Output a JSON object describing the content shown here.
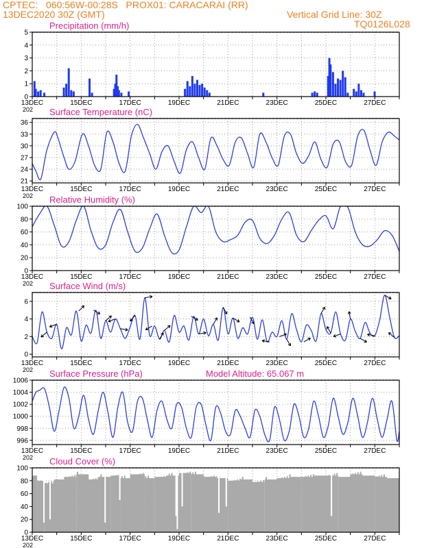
{
  "header": {
    "line1_left": "CPTEC:   060:56W-00:28S   PROX01: CARACARAI (RR)",
    "line2_left": "13DEC2020 30Z (GMT)",
    "line2_right": "Vertical Grid Line: 30Z",
    "line3_right": "TQ0126L028"
  },
  "x_tick_labels": [
    "13DEC",
    "15DEC",
    "17DEC",
    "19DEC",
    "21DEC",
    "23DEC",
    "25DEC",
    "27DEC"
  ],
  "year_fragment": "202",
  "colors": {
    "header": "#f08020",
    "title": "#e0208a",
    "line": "#2a3fe0",
    "precip": "#1f3af0",
    "cloud": "#aaaaaa"
  },
  "chart_data": [
    {
      "type": "bar",
      "title": "Precipitation (mm/h)",
      "ylim": [
        0,
        5
      ],
      "yticks": [
        "0",
        "1",
        "2",
        "3",
        "4",
        "5"
      ],
      "x_range_days": [
        0,
        15
      ],
      "bars": [
        [
          0.05,
          1.2
        ],
        [
          0.1,
          0.6
        ],
        [
          0.2,
          0.4
        ],
        [
          0.3,
          0.5
        ],
        [
          0.45,
          0.3
        ],
        [
          1.25,
          0.7
        ],
        [
          1.35,
          1.0
        ],
        [
          1.45,
          2.2
        ],
        [
          1.55,
          0.5
        ],
        [
          1.65,
          0.4
        ],
        [
          2.3,
          1.4
        ],
        [
          2.4,
          0.3
        ],
        [
          3.3,
          0.6
        ],
        [
          3.35,
          1.0
        ],
        [
          3.4,
          1.7
        ],
        [
          3.45,
          0.8
        ],
        [
          3.5,
          0.5
        ],
        [
          3.6,
          0.3
        ],
        [
          3.9,
          0.4
        ],
        [
          6.2,
          0.6
        ],
        [
          6.3,
          1.2
        ],
        [
          6.4,
          0.8
        ],
        [
          6.5,
          1.6
        ],
        [
          6.6,
          1.0
        ],
        [
          6.7,
          1.3
        ],
        [
          6.8,
          0.9
        ],
        [
          6.9,
          1.0
        ],
        [
          7.0,
          0.7
        ],
        [
          7.1,
          0.5
        ],
        [
          7.2,
          0.3
        ],
        [
          9.4,
          0.3
        ],
        [
          11.4,
          0.3
        ],
        [
          11.5,
          0.4
        ],
        [
          11.6,
          0.3
        ],
        [
          12.05,
          1.6
        ],
        [
          12.1,
          3.0
        ],
        [
          12.15,
          2.5
        ],
        [
          12.25,
          1.9
        ],
        [
          12.35,
          1.0
        ],
        [
          12.45,
          1.4
        ],
        [
          12.55,
          1.3
        ],
        [
          12.65,
          2.0
        ],
        [
          12.75,
          1.5
        ],
        [
          12.85,
          0.3
        ],
        [
          13.1,
          0.6
        ],
        [
          13.2,
          0.4
        ],
        [
          13.3,
          1.0
        ],
        [
          13.4,
          0.5
        ],
        [
          13.5,
          0.3
        ],
        [
          13.95,
          0.4
        ]
      ]
    },
    {
      "type": "line",
      "title": "Surface Temperature (nC)",
      "ylim": [
        20.5,
        37
      ],
      "yticks": [
        "21",
        "24",
        "27",
        "30",
        "33",
        "36"
      ],
      "x_range_days": [
        0,
        15
      ],
      "x": [
        0,
        0.15,
        0.35,
        0.6,
        0.9,
        1.05,
        1.3,
        1.5,
        1.75,
        2.05,
        2.3,
        2.55,
        2.8,
        3.05,
        3.3,
        3.55,
        3.8,
        4.05,
        4.3,
        4.55,
        4.8,
        5.05,
        5.3,
        5.55,
        5.8,
        6.05,
        6.3,
        6.55,
        6.8,
        7.05,
        7.3,
        7.55,
        7.8,
        8.05,
        8.3,
        8.55,
        8.8,
        9.05,
        9.3,
        9.55,
        9.8,
        10.05,
        10.3,
        10.55,
        10.8,
        11.05,
        11.3,
        11.55,
        11.8,
        12.05,
        12.3,
        12.55,
        12.8,
        13.05,
        13.3,
        13.55,
        13.8,
        14.05,
        14.3,
        14.55,
        14.8,
        15
      ],
      "values": [
        25.5,
        23.5,
        21.5,
        29,
        33.5,
        32,
        27,
        24,
        26,
        33,
        30,
        25,
        24,
        33.5,
        31,
        25.5,
        23.5,
        32.5,
        35.5,
        32,
        28,
        24,
        28.5,
        30,
        26,
        23,
        29,
        31,
        27,
        24,
        32,
        30,
        26.5,
        25,
        31,
        32,
        28,
        24.5,
        33,
        31,
        27,
        25,
        32.5,
        33,
        28,
        25.5,
        27.5,
        31,
        26.5,
        24.5,
        30.5,
        31,
        26,
        25,
        32.5,
        34,
        29,
        25,
        31,
        33.5,
        32.5,
        31.5
      ]
    },
    {
      "type": "line",
      "title": "Relative Humidity (%)",
      "ylim": [
        0,
        100
      ],
      "yticks": [
        "0",
        "20",
        "40",
        "60",
        "80",
        "100"
      ],
      "x_range_days": [
        0,
        15
      ],
      "x": [
        0,
        0.3,
        0.6,
        0.9,
        1.2,
        1.5,
        1.8,
        2.1,
        2.4,
        2.7,
        3,
        3.3,
        3.6,
        3.9,
        4.2,
        4.5,
        4.8,
        5.1,
        5.4,
        5.7,
        6,
        6.3,
        6.6,
        6.9,
        7.2,
        7.5,
        7.8,
        8.1,
        8.4,
        8.7,
        9,
        9.3,
        9.6,
        9.9,
        10.2,
        10.5,
        10.8,
        11.1,
        11.4,
        11.7,
        12,
        12.3,
        12.6,
        12.9,
        13.2,
        13.5,
        13.8,
        14.1,
        14.4,
        14.7,
        15
      ],
      "values": [
        68,
        88,
        100,
        70,
        38,
        45,
        78,
        100,
        62,
        35,
        40,
        75,
        95,
        60,
        30,
        35,
        65,
        88,
        55,
        28,
        32,
        68,
        100,
        90,
        100,
        60,
        45,
        48,
        55,
        75,
        78,
        50,
        42,
        55,
        80,
        90,
        55,
        45,
        62,
        78,
        85,
        65,
        100,
        98,
        60,
        40,
        38,
        48,
        62,
        55,
        30
      ]
    },
    {
      "type": "line",
      "title": "Surface Wind (m/s)",
      "ylim": [
        -0.3,
        7
      ],
      "yticks": [
        "0",
        "2",
        "4",
        "6"
      ],
      "x_range_days": [
        0,
        15
      ],
      "x": [
        0,
        0.2,
        0.4,
        0.6,
        0.8,
        1,
        1.2,
        1.4,
        1.6,
        1.8,
        2,
        2.2,
        2.4,
        2.6,
        2.8,
        3,
        3.2,
        3.4,
        3.6,
        3.8,
        4,
        4.2,
        4.4,
        4.6,
        4.8,
        5,
        5.2,
        5.4,
        5.6,
        5.8,
        6,
        6.2,
        6.4,
        6.6,
        6.8,
        7,
        7.2,
        7.4,
        7.6,
        7.8,
        8,
        8.2,
        8.4,
        8.6,
        8.8,
        9,
        9.2,
        9.4,
        9.6,
        9.8,
        10,
        10.2,
        10.4,
        10.6,
        10.8,
        11,
        11.2,
        11.4,
        11.6,
        11.8,
        12,
        12.2,
        12.4,
        12.6,
        12.8,
        13,
        13.2,
        13.4,
        13.6,
        13.8,
        14,
        14.2,
        14.4,
        14.6,
        14.8,
        15
      ],
      "values": [
        2,
        1.3,
        4.8,
        2.5,
        1.8,
        3.4,
        0.6,
        3.0,
        2.2,
        4.9,
        1.5,
        3.3,
        2.4,
        5.0,
        1.8,
        3.8,
        2.5,
        4.0,
        2.9,
        1.8,
        3.1,
        4.4,
        1.7,
        6.4,
        2.1,
        3.2,
        1.7,
        2.7,
        1.4,
        4.4,
        2.5,
        3.2,
        1.6,
        4.3,
        2.3,
        4.0,
        2.1,
        3.4,
        1.6,
        5.3,
        2.3,
        4.1,
        1.8,
        3.0,
        2.3,
        4.2,
        1.7,
        3.9,
        1.4,
        2.5,
        2.0,
        3.8,
        1.7,
        4.6,
        2.8,
        1.4,
        3.3,
        2.7,
        1.5,
        4.6,
        2.8,
        2.4,
        4.8,
        2.3,
        1.6,
        4.0,
        2.6,
        1.8,
        3.6,
        2.4,
        2.1,
        3.9,
        6.7,
        4.3,
        1.9,
        2.1
      ]
    },
    {
      "type": "line",
      "title": "Surface Pressure (hPa)",
      "annotation": "Model Altitude: 65.067 m",
      "ylim": [
        995.3,
        1006
      ],
      "yticks": [
        "996",
        "998",
        "1000",
        "1002",
        "1004",
        "1006"
      ],
      "x_range_days": [
        0,
        15
      ],
      "x": [
        0,
        0.15,
        0.3,
        0.5,
        0.7,
        0.9,
        1.1,
        1.3,
        1.5,
        1.7,
        1.9,
        2.1,
        2.3,
        2.5,
        2.7,
        2.9,
        3.1,
        3.3,
        3.5,
        3.7,
        3.9,
        4.1,
        4.3,
        4.5,
        4.7,
        4.9,
        5.1,
        5.3,
        5.5,
        5.7,
        5.9,
        6.1,
        6.3,
        6.5,
        6.7,
        6.9,
        7.1,
        7.3,
        7.5,
        7.7,
        7.9,
        8.1,
        8.3,
        8.5,
        8.7,
        8.9,
        9.1,
        9.3,
        9.5,
        9.7,
        9.9,
        10.1,
        10.3,
        10.5,
        10.7,
        10.9,
        11.1,
        11.3,
        11.5,
        11.7,
        11.9,
        12.1,
        12.3,
        12.5,
        12.7,
        12.9,
        13.1,
        13.3,
        13.5,
        13.7,
        13.9,
        14.1,
        14.3,
        14.5,
        14.7,
        14.9,
        15
      ],
      "values": [
        1002.5,
        1004,
        1004.3,
        1004.6,
        1001.5,
        997.5,
        1001,
        1004.8,
        1003,
        998,
        1000,
        1003.5,
        999.5,
        997,
        1001,
        1004,
        1000.5,
        996.5,
        1001.5,
        1004,
        999,
        997.5,
        1002.5,
        1003,
        999.5,
        996.5,
        1001,
        1002.5,
        999.5,
        998,
        1002,
        1001.5,
        998,
        996.5,
        1001.5,
        1002,
        998.5,
        996,
        1001.5,
        1000.5,
        997.5,
        997,
        1001,
        1000,
        998,
        996.5,
        1001,
        1000,
        997,
        996,
        1001.5,
        999.5,
        996,
        997.5,
        1002,
        1000,
        996.5,
        998,
        1002.5,
        1000,
        996.5,
        998.5,
        1003,
        1000,
        997,
        999,
        1003,
        1000,
        996.5,
        999,
        1003,
        999.5,
        996.5,
        999.5,
        1002.5,
        996,
        997.5
      ]
    },
    {
      "type": "bar",
      "title": "Cloud Cover (%)",
      "ylim": [
        0,
        100
      ],
      "yticks": [
        "0",
        "20",
        "40",
        "60",
        "80",
        "100"
      ],
      "x_range_days": [
        0,
        15
      ],
      "segments": [
        [
          0,
          0.2,
          88
        ],
        [
          0.2,
          0.5,
          80
        ],
        [
          0.5,
          0.9,
          76
        ],
        [
          0.9,
          1.3,
          82
        ],
        [
          1.3,
          1.8,
          86
        ],
        [
          1.8,
          2.3,
          90
        ],
        [
          2.3,
          2.7,
          82
        ],
        [
          2.7,
          3.2,
          86
        ],
        [
          3.2,
          3.6,
          88
        ],
        [
          3.6,
          4.0,
          84
        ],
        [
          4.0,
          4.6,
          90
        ],
        [
          4.6,
          5.0,
          84
        ],
        [
          5.0,
          5.5,
          86
        ],
        [
          5.5,
          6.0,
          88
        ],
        [
          6.0,
          6.5,
          92
        ],
        [
          6.5,
          7.0,
          90
        ],
        [
          7.0,
          7.5,
          86
        ],
        [
          7.5,
          8.0,
          84
        ],
        [
          8.0,
          8.5,
          80
        ],
        [
          8.5,
          9.0,
          82
        ],
        [
          9.0,
          9.5,
          78
        ],
        [
          9.5,
          10.0,
          82
        ],
        [
          10.0,
          10.5,
          84
        ],
        [
          10.5,
          11.0,
          86
        ],
        [
          11.0,
          11.5,
          86
        ],
        [
          11.5,
          12.0,
          88
        ],
        [
          12.0,
          12.5,
          88
        ],
        [
          12.5,
          13.0,
          86
        ],
        [
          13.0,
          13.5,
          90
        ],
        [
          13.5,
          14.0,
          88
        ],
        [
          14.0,
          14.5,
          86
        ],
        [
          14.5,
          15.0,
          84
        ]
      ],
      "dips": [
        [
          0.45,
          15
        ],
        [
          0.7,
          20
        ],
        [
          2.95,
          15
        ],
        [
          3.55,
          50
        ],
        [
          5.85,
          25
        ],
        [
          5.9,
          5
        ],
        [
          6.1,
          40
        ],
        [
          7.6,
          30
        ],
        [
          7.9,
          40
        ],
        [
          12.2,
          25
        ]
      ]
    }
  ]
}
